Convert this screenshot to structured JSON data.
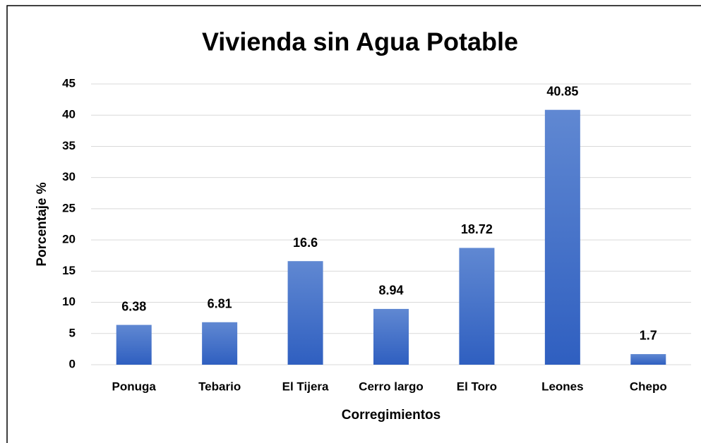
{
  "chart_data": {
    "type": "bar",
    "title": "Vivienda sin Agua Potable",
    "x_label": "Corregimientos",
    "y_label": "Porcentaje %",
    "categories": [
      "Ponuga",
      "Tebario",
      "El Tijera",
      "Cerro largo",
      "El Toro",
      "Leones",
      "Chepo"
    ],
    "values": [
      6.38,
      6.81,
      16.6,
      8.94,
      18.72,
      40.85,
      1.7
    ],
    "color": "#4472c4",
    "ylim": [
      0,
      45
    ],
    "yticks": [
      0,
      5,
      10,
      15,
      20,
      25,
      30,
      35,
      40,
      45
    ],
    "grid": true
  }
}
